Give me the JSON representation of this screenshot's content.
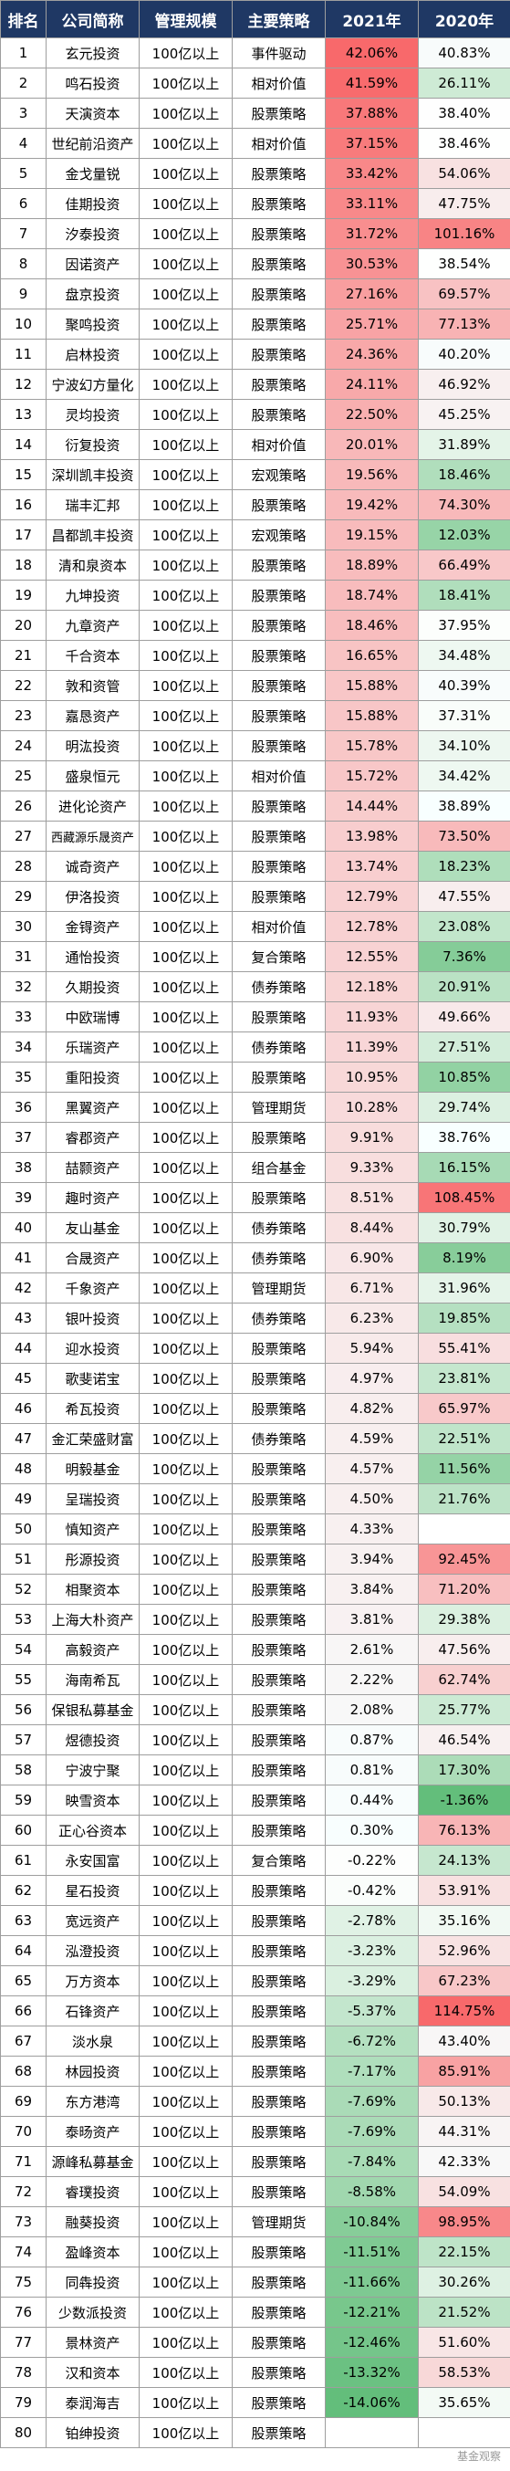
{
  "header": {
    "rank": "排名",
    "company": "公司简称",
    "scale": "管理规模",
    "strategy": "主要策略",
    "y2021": "2021年",
    "y2020": "2020年"
  },
  "rows": [
    {
      "rank": "1",
      "company": "玄元投资",
      "scale": "100亿以上",
      "strategy": "事件驱动",
      "y2021": "42.06%",
      "y2020": "40.83%"
    },
    {
      "rank": "2",
      "company": "鸣石投资",
      "scale": "100亿以上",
      "strategy": "相对价值",
      "y2021": "41.59%",
      "y2020": "26.11%"
    },
    {
      "rank": "3",
      "company": "天演资本",
      "scale": "100亿以上",
      "strategy": "股票策略",
      "y2021": "37.88%",
      "y2020": "38.40%"
    },
    {
      "rank": "4",
      "company": "世纪前沿资产",
      "scale": "100亿以上",
      "strategy": "相对价值",
      "y2021": "37.15%",
      "y2020": "38.46%"
    },
    {
      "rank": "5",
      "company": "金戈量锐",
      "scale": "100亿以上",
      "strategy": "股票策略",
      "y2021": "33.42%",
      "y2020": "54.06%"
    },
    {
      "rank": "6",
      "company": "佳期投资",
      "scale": "100亿以上",
      "strategy": "股票策略",
      "y2021": "33.11%",
      "y2020": "47.75%"
    },
    {
      "rank": "7",
      "company": "汐泰投资",
      "scale": "100亿以上",
      "strategy": "股票策略",
      "y2021": "31.72%",
      "y2020": "101.16%"
    },
    {
      "rank": "8",
      "company": "因诺资产",
      "scale": "100亿以上",
      "strategy": "股票策略",
      "y2021": "30.53%",
      "y2020": "38.54%"
    },
    {
      "rank": "9",
      "company": "盘京投资",
      "scale": "100亿以上",
      "strategy": "股票策略",
      "y2021": "27.16%",
      "y2020": "69.57%"
    },
    {
      "rank": "10",
      "company": "聚鸣投资",
      "scale": "100亿以上",
      "strategy": "股票策略",
      "y2021": "25.71%",
      "y2020": "77.13%"
    },
    {
      "rank": "11",
      "company": "启林投资",
      "scale": "100亿以上",
      "strategy": "股票策略",
      "y2021": "24.36%",
      "y2020": "40.20%"
    },
    {
      "rank": "12",
      "company": "宁波幻方量化",
      "scale": "100亿以上",
      "strategy": "股票策略",
      "y2021": "24.11%",
      "y2020": "46.92%"
    },
    {
      "rank": "13",
      "company": "灵均投资",
      "scale": "100亿以上",
      "strategy": "股票策略",
      "y2021": "22.50%",
      "y2020": "45.25%"
    },
    {
      "rank": "14",
      "company": "衍复投资",
      "scale": "100亿以上",
      "strategy": "相对价值",
      "y2021": "20.01%",
      "y2020": "31.89%"
    },
    {
      "rank": "15",
      "company": "深圳凯丰投资",
      "scale": "100亿以上",
      "strategy": "宏观策略",
      "y2021": "19.56%",
      "y2020": "18.46%"
    },
    {
      "rank": "16",
      "company": "瑞丰汇邦",
      "scale": "100亿以上",
      "strategy": "股票策略",
      "y2021": "19.42%",
      "y2020": "74.30%"
    },
    {
      "rank": "17",
      "company": "昌都凯丰投资",
      "scale": "100亿以上",
      "strategy": "宏观策略",
      "y2021": "19.15%",
      "y2020": "12.03%"
    },
    {
      "rank": "18",
      "company": "清和泉资本",
      "scale": "100亿以上",
      "strategy": "股票策略",
      "y2021": "18.89%",
      "y2020": "66.49%"
    },
    {
      "rank": "19",
      "company": "九坤投资",
      "scale": "100亿以上",
      "strategy": "股票策略",
      "y2021": "18.74%",
      "y2020": "18.41%"
    },
    {
      "rank": "20",
      "company": "九章资产",
      "scale": "100亿以上",
      "strategy": "股票策略",
      "y2021": "18.46%",
      "y2020": "37.95%"
    },
    {
      "rank": "21",
      "company": "千合资本",
      "scale": "100亿以上",
      "strategy": "股票策略",
      "y2021": "16.65%",
      "y2020": "34.48%"
    },
    {
      "rank": "22",
      "company": "敦和资管",
      "scale": "100亿以上",
      "strategy": "股票策略",
      "y2021": "15.88%",
      "y2020": "40.39%"
    },
    {
      "rank": "23",
      "company": "嘉恳资产",
      "scale": "100亿以上",
      "strategy": "股票策略",
      "y2021": "15.88%",
      "y2020": "37.31%"
    },
    {
      "rank": "24",
      "company": "明汯投资",
      "scale": "100亿以上",
      "strategy": "股票策略",
      "y2021": "15.78%",
      "y2020": "34.10%"
    },
    {
      "rank": "25",
      "company": "盛泉恒元",
      "scale": "100亿以上",
      "strategy": "相对价值",
      "y2021": "15.72%",
      "y2020": "34.42%"
    },
    {
      "rank": "26",
      "company": "进化论资产",
      "scale": "100亿以上",
      "strategy": "股票策略",
      "y2021": "14.44%",
      "y2020": "38.89%"
    },
    {
      "rank": "27",
      "company": "西藏源乐晟资产",
      "scale": "100亿以上",
      "strategy": "股票策略",
      "y2021": "13.98%",
      "y2020": "73.50%"
    },
    {
      "rank": "28",
      "company": "诚奇资产",
      "scale": "100亿以上",
      "strategy": "股票策略",
      "y2021": "13.74%",
      "y2020": "18.23%"
    },
    {
      "rank": "29",
      "company": "伊洛投资",
      "scale": "100亿以上",
      "strategy": "股票策略",
      "y2021": "12.79%",
      "y2020": "47.55%"
    },
    {
      "rank": "30",
      "company": "金锝资产",
      "scale": "100亿以上",
      "strategy": "相对价值",
      "y2021": "12.78%",
      "y2020": "23.08%"
    },
    {
      "rank": "31",
      "company": "通怡投资",
      "scale": "100亿以上",
      "strategy": "复合策略",
      "y2021": "12.55%",
      "y2020": "7.36%"
    },
    {
      "rank": "32",
      "company": "久期投资",
      "scale": "100亿以上",
      "strategy": "债券策略",
      "y2021": "12.18%",
      "y2020": "20.91%"
    },
    {
      "rank": "33",
      "company": "中欧瑞博",
      "scale": "100亿以上",
      "strategy": "股票策略",
      "y2021": "11.93%",
      "y2020": "49.66%"
    },
    {
      "rank": "34",
      "company": "乐瑞资产",
      "scale": "100亿以上",
      "strategy": "债券策略",
      "y2021": "11.39%",
      "y2020": "27.51%"
    },
    {
      "rank": "35",
      "company": "重阳投资",
      "scale": "100亿以上",
      "strategy": "股票策略",
      "y2021": "10.95%",
      "y2020": "10.85%"
    },
    {
      "rank": "36",
      "company": "黑翼资产",
      "scale": "100亿以上",
      "strategy": "管理期货",
      "y2021": "10.28%",
      "y2020": "29.74%"
    },
    {
      "rank": "37",
      "company": "睿郡资产",
      "scale": "100亿以上",
      "strategy": "股票策略",
      "y2021": "9.91%",
      "y2020": "38.76%"
    },
    {
      "rank": "38",
      "company": "喆颢资产",
      "scale": "100亿以上",
      "strategy": "组合基金",
      "y2021": "9.33%",
      "y2020": "16.15%"
    },
    {
      "rank": "39",
      "company": "趣时资产",
      "scale": "100亿以上",
      "strategy": "股票策略",
      "y2021": "8.51%",
      "y2020": "108.45%"
    },
    {
      "rank": "40",
      "company": "友山基金",
      "scale": "100亿以上",
      "strategy": "债券策略",
      "y2021": "8.44%",
      "y2020": "30.79%"
    },
    {
      "rank": "41",
      "company": "合晟资产",
      "scale": "100亿以上",
      "strategy": "债券策略",
      "y2021": "6.90%",
      "y2020": "8.19%"
    },
    {
      "rank": "42",
      "company": "千象资产",
      "scale": "100亿以上",
      "strategy": "管理期货",
      "y2021": "6.71%",
      "y2020": "31.96%"
    },
    {
      "rank": "43",
      "company": "银叶投资",
      "scale": "100亿以上",
      "strategy": "债券策略",
      "y2021": "6.23%",
      "y2020": "19.85%"
    },
    {
      "rank": "44",
      "company": "迎水投资",
      "scale": "100亿以上",
      "strategy": "股票策略",
      "y2021": "5.94%",
      "y2020": "55.41%"
    },
    {
      "rank": "45",
      "company": "歌斐诺宝",
      "scale": "100亿以上",
      "strategy": "股票策略",
      "y2021": "4.97%",
      "y2020": "23.81%"
    },
    {
      "rank": "46",
      "company": "希瓦投资",
      "scale": "100亿以上",
      "strategy": "股票策略",
      "y2021": "4.82%",
      "y2020": "65.97%"
    },
    {
      "rank": "47",
      "company": "金汇荣盛财富",
      "scale": "100亿以上",
      "strategy": "债券策略",
      "y2021": "4.59%",
      "y2020": "22.51%"
    },
    {
      "rank": "48",
      "company": "明毅基金",
      "scale": "100亿以上",
      "strategy": "股票策略",
      "y2021": "4.57%",
      "y2020": "11.56%"
    },
    {
      "rank": "49",
      "company": "呈瑞投资",
      "scale": "100亿以上",
      "strategy": "股票策略",
      "y2021": "4.50%",
      "y2020": "21.76%"
    },
    {
      "rank": "50",
      "company": "慎知资产",
      "scale": "100亿以上",
      "strategy": "股票策略",
      "y2021": "4.33%",
      "y2020": ""
    },
    {
      "rank": "51",
      "company": "彤源投资",
      "scale": "100亿以上",
      "strategy": "股票策略",
      "y2021": "3.94%",
      "y2020": "92.45%"
    },
    {
      "rank": "52",
      "company": "相聚资本",
      "scale": "100亿以上",
      "strategy": "股票策略",
      "y2021": "3.84%",
      "y2020": "71.20%"
    },
    {
      "rank": "53",
      "company": "上海大朴资产",
      "scale": "100亿以上",
      "strategy": "股票策略",
      "y2021": "3.81%",
      "y2020": "29.38%"
    },
    {
      "rank": "54",
      "company": "高毅资产",
      "scale": "100亿以上",
      "strategy": "股票策略",
      "y2021": "2.61%",
      "y2020": "47.56%"
    },
    {
      "rank": "55",
      "company": "海南希瓦",
      "scale": "100亿以上",
      "strategy": "股票策略",
      "y2021": "2.22%",
      "y2020": "62.74%"
    },
    {
      "rank": "56",
      "company": "保银私募基金",
      "scale": "100亿以上",
      "strategy": "股票策略",
      "y2021": "2.08%",
      "y2020": "25.77%"
    },
    {
      "rank": "57",
      "company": "煜德投资",
      "scale": "100亿以上",
      "strategy": "股票策略",
      "y2021": "0.87%",
      "y2020": "46.54%"
    },
    {
      "rank": "58",
      "company": "宁波宁聚",
      "scale": "100亿以上",
      "strategy": "股票策略",
      "y2021": "0.81%",
      "y2020": "17.30%"
    },
    {
      "rank": "59",
      "company": "映雪资本",
      "scale": "100亿以上",
      "strategy": "股票策略",
      "y2021": "0.44%",
      "y2020": "-1.36%"
    },
    {
      "rank": "60",
      "company": "正心谷资本",
      "scale": "100亿以上",
      "strategy": "股票策略",
      "y2021": "0.30%",
      "y2020": "76.13%"
    },
    {
      "rank": "61",
      "company": "永安国富",
      "scale": "100亿以上",
      "strategy": "复合策略",
      "y2021": "-0.22%",
      "y2020": "24.13%"
    },
    {
      "rank": "62",
      "company": "星石投资",
      "scale": "100亿以上",
      "strategy": "股票策略",
      "y2021": "-0.42%",
      "y2020": "53.91%"
    },
    {
      "rank": "63",
      "company": "宽远资产",
      "scale": "100亿以上",
      "strategy": "股票策略",
      "y2021": "-2.78%",
      "y2020": "35.16%"
    },
    {
      "rank": "64",
      "company": "泓澄投资",
      "scale": "100亿以上",
      "strategy": "股票策略",
      "y2021": "-3.23%",
      "y2020": "52.96%"
    },
    {
      "rank": "65",
      "company": "万方资本",
      "scale": "100亿以上",
      "strategy": "股票策略",
      "y2021": "-3.29%",
      "y2020": "67.23%"
    },
    {
      "rank": "66",
      "company": "石锋资产",
      "scale": "100亿以上",
      "strategy": "股票策略",
      "y2021": "-5.37%",
      "y2020": "114.75%"
    },
    {
      "rank": "67",
      "company": "淡水泉",
      "scale": "100亿以上",
      "strategy": "股票策略",
      "y2021": "-6.72%",
      "y2020": "43.40%"
    },
    {
      "rank": "68",
      "company": "林园投资",
      "scale": "100亿以上",
      "strategy": "股票策略",
      "y2021": "-7.17%",
      "y2020": "85.91%"
    },
    {
      "rank": "69",
      "company": "东方港湾",
      "scale": "100亿以上",
      "strategy": "股票策略",
      "y2021": "-7.69%",
      "y2020": "50.13%"
    },
    {
      "rank": "70",
      "company": "泰旸资产",
      "scale": "100亿以上",
      "strategy": "股票策略",
      "y2021": "-7.69%",
      "y2020": "44.31%"
    },
    {
      "rank": "71",
      "company": "源峰私募基金",
      "scale": "100亿以上",
      "strategy": "股票策略",
      "y2021": "-7.84%",
      "y2020": "42.33%"
    },
    {
      "rank": "72",
      "company": "睿璞投资",
      "scale": "100亿以上",
      "strategy": "股票策略",
      "y2021": "-8.58%",
      "y2020": "54.09%"
    },
    {
      "rank": "73",
      "company": "融葵投资",
      "scale": "100亿以上",
      "strategy": "管理期货",
      "y2021": "-10.84%",
      "y2020": "98.95%"
    },
    {
      "rank": "74",
      "company": "盈峰资本",
      "scale": "100亿以上",
      "strategy": "股票策略",
      "y2021": "-11.51%",
      "y2020": "22.15%"
    },
    {
      "rank": "75",
      "company": "同犇投资",
      "scale": "100亿以上",
      "strategy": "股票策略",
      "y2021": "-11.66%",
      "y2020": "30.26%"
    },
    {
      "rank": "76",
      "company": "少数派投资",
      "scale": "100亿以上",
      "strategy": "股票策略",
      "y2021": "-12.21%",
      "y2020": "21.52%"
    },
    {
      "rank": "77",
      "company": "景林资产",
      "scale": "100亿以上",
      "strategy": "股票策略",
      "y2021": "-12.46%",
      "y2020": "51.60%"
    },
    {
      "rank": "78",
      "company": "汉和资本",
      "scale": "100亿以上",
      "strategy": "股票策略",
      "y2021": "-13.32%",
      "y2020": "58.53%"
    },
    {
      "rank": "79",
      "company": "泰润海吉",
      "scale": "100亿以上",
      "strategy": "股票策略",
      "y2021": "-14.06%",
      "y2020": "35.65%"
    },
    {
      "rank": "80",
      "company": "铂绅投资",
      "scale": "100亿以上",
      "strategy": "股票策略",
      "y2021": "",
      "y2020": ""
    }
  ],
  "watermark": "基金观察",
  "colors": {
    "header_bg": "#1f3864",
    "positive": "#f8696b",
    "negative": "#63be7b"
  }
}
